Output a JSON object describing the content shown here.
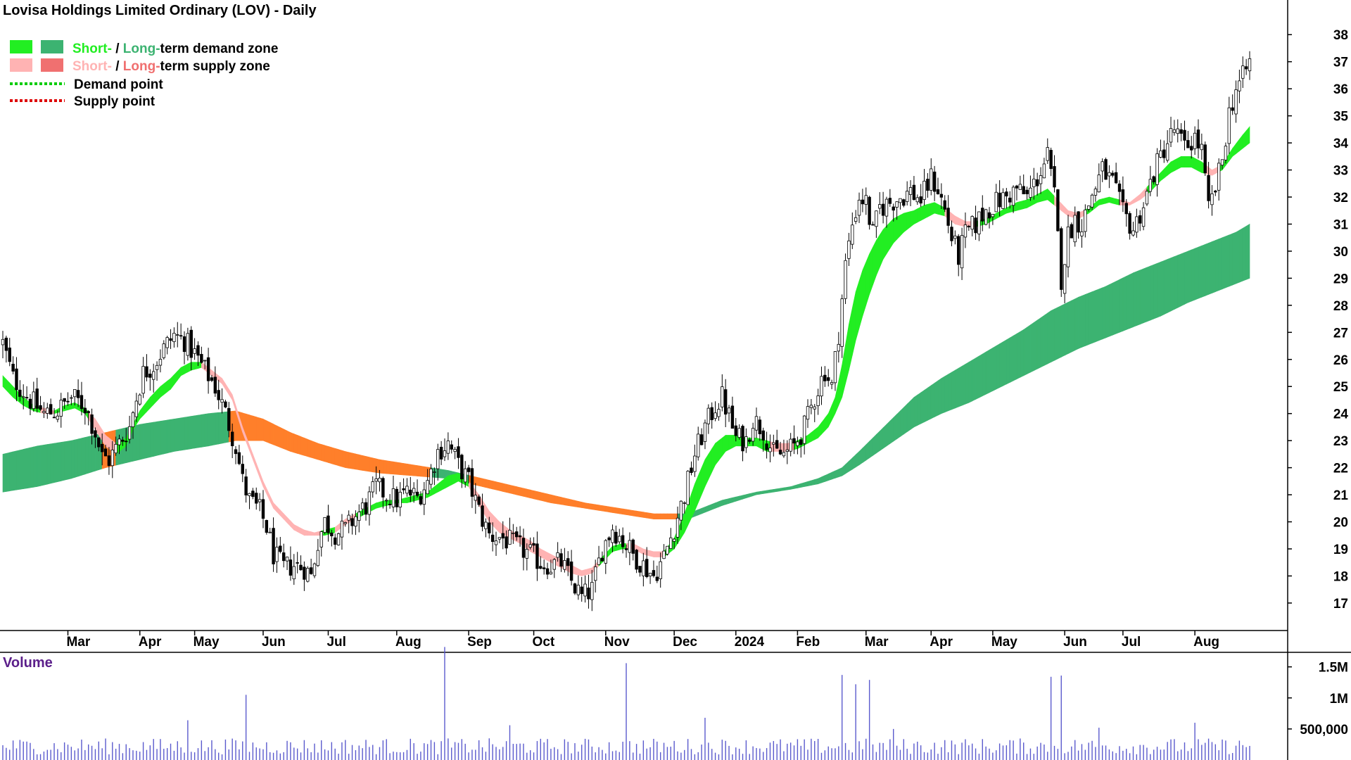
{
  "colors": {
    "short_demand": "#22ee22",
    "long_demand": "#3cb371",
    "short_supply": "#ffb3b3",
    "long_supply": "#f07070",
    "orange_zone": "#ff7f2a",
    "demand_point": "#00cc00",
    "supply_point": "#dd0000",
    "volume_bar": "#5a5acd",
    "volume_label": "#5b1f8a"
  },
  "chart_data": {
    "type": "candlestick",
    "title": "Lovisa Holdings Limited Ordinary (LOV) - Daily",
    "legend": {
      "placement": "top-left",
      "entries": [
        {
          "short": "Short-",
          "sep": " / ",
          "long": "Long-",
          "rest": "term demand zone",
          "kind": "demand"
        },
        {
          "short": "Short-",
          "sep": " / ",
          "long": "Long-",
          "rest": "term supply zone",
          "kind": "supply"
        },
        {
          "label": "Demand point",
          "kind": "demand_point"
        },
        {
          "label": "Supply point",
          "kind": "supply_point"
        }
      ]
    },
    "price_axis": {
      "min": 16.4,
      "max": 38.5,
      "ticks": [
        17,
        18,
        19,
        20,
        21,
        22,
        23,
        24,
        25,
        26,
        27,
        28,
        29,
        30,
        31,
        32,
        33,
        34,
        35,
        36,
        37,
        38
      ],
      "side": "right"
    },
    "time_axis": {
      "start_index": 0,
      "end_index": 360,
      "months": [
        {
          "label": "Mar",
          "index": 19
        },
        {
          "label": "Apr",
          "index": 40
        },
        {
          "label": "May",
          "index": 56
        },
        {
          "label": "Jun",
          "index": 76
        },
        {
          "label": "Jul",
          "index": 95
        },
        {
          "label": "Aug",
          "index": 115
        },
        {
          "label": "Sep",
          "index": 136
        },
        {
          "label": "Oct",
          "index": 155
        },
        {
          "label": "Nov",
          "index": 176
        },
        {
          "label": "Dec",
          "index": 196
        },
        {
          "label": "2024",
          "index": 214
        },
        {
          "label": "Feb",
          "index": 232
        },
        {
          "label": "Mar",
          "index": 252
        },
        {
          "label": "Apr",
          "index": 271
        },
        {
          "label": "May",
          "index": 289
        },
        {
          "label": "Jun",
          "index": 310
        },
        {
          "label": "Jul",
          "index": 327
        },
        {
          "label": "Aug",
          "index": 348
        }
      ]
    },
    "price_path": [
      [
        0,
        26.6
      ],
      [
        3,
        25.3
      ],
      [
        8,
        24.5
      ],
      [
        12,
        24.0
      ],
      [
        16,
        24.1
      ],
      [
        20,
        24.6
      ],
      [
        24,
        24.3
      ],
      [
        27,
        23.3
      ],
      [
        29,
        22.4
      ],
      [
        31,
        22.3
      ],
      [
        34,
        22.9
      ],
      [
        37,
        23.5
      ],
      [
        39,
        24.6
      ],
      [
        41,
        25.5
      ],
      [
        44,
        25.8
      ],
      [
        47,
        26.4
      ],
      [
        50,
        26.9
      ],
      [
        53,
        26.7
      ],
      [
        56,
        26.2
      ],
      [
        59,
        25.6
      ],
      [
        62,
        25.0
      ],
      [
        65,
        24.0
      ],
      [
        68,
        22.8
      ],
      [
        70,
        21.5
      ],
      [
        72,
        20.8
      ],
      [
        75,
        20.4
      ],
      [
        77,
        19.8
      ],
      [
        79,
        18.8
      ],
      [
        82,
        18.3
      ],
      [
        85,
        18.4
      ],
      [
        88,
        18.3
      ],
      [
        90,
        18.0
      ],
      [
        92,
        19.3
      ],
      [
        94,
        20.0
      ],
      [
        97,
        19.6
      ],
      [
        100,
        19.7
      ],
      [
        103,
        20.2
      ],
      [
        106,
        20.6
      ],
      [
        109,
        21.3
      ],
      [
        112,
        21.0
      ],
      [
        115,
        20.8
      ],
      [
        118,
        21.1
      ],
      [
        121,
        20.9
      ],
      [
        124,
        21.5
      ],
      [
        127,
        22.6
      ],
      [
        130,
        22.9
      ],
      [
        133,
        22.1
      ],
      [
        136,
        21.5
      ],
      [
        139,
        20.4
      ],
      [
        142,
        19.5
      ],
      [
        146,
        19.4
      ],
      [
        150,
        19.1
      ],
      [
        154,
        18.8
      ],
      [
        157,
        18.5
      ],
      [
        160,
        18.4
      ],
      [
        163,
        18.5
      ],
      [
        166,
        17.8
      ],
      [
        169,
        17.2
      ],
      [
        172,
        17.5
      ],
      [
        175,
        19.0
      ],
      [
        178,
        19.8
      ],
      [
        181,
        19.3
      ],
      [
        184,
        18.8
      ],
      [
        187,
        18.4
      ],
      [
        190,
        18.0
      ],
      [
        193,
        18.7
      ],
      [
        196,
        19.8
      ],
      [
        199,
        21.0
      ],
      [
        202,
        22.5
      ],
      [
        205,
        23.5
      ],
      [
        208,
        24.3
      ],
      [
        210,
        24.6
      ],
      [
        212,
        23.9
      ],
      [
        214,
        23.1
      ],
      [
        217,
        23.0
      ],
      [
        219,
        23.8
      ],
      [
        222,
        23.4
      ],
      [
        225,
        22.5
      ],
      [
        228,
        22.5
      ],
      [
        231,
        22.8
      ],
      [
        234,
        23.5
      ],
      [
        237,
        24.6
      ],
      [
        240,
        25.6
      ],
      [
        242,
        25.0
      ],
      [
        244,
        27.0
      ],
      [
        246,
        29.5
      ],
      [
        248,
        31.0
      ],
      [
        250,
        32.0
      ],
      [
        252,
        31.8
      ],
      [
        254,
        30.6
      ],
      [
        256,
        31.6
      ],
      [
        259,
        31.8
      ],
      [
        262,
        32.0
      ],
      [
        265,
        32.2
      ],
      [
        268,
        31.9
      ],
      [
        271,
        32.7
      ],
      [
        273,
        32.3
      ],
      [
        275,
        31.5
      ],
      [
        277,
        30.5
      ],
      [
        279,
        29.8
      ],
      [
        281,
        30.6
      ],
      [
        284,
        31.0
      ],
      [
        287,
        31.5
      ],
      [
        290,
        31.8
      ],
      [
        293,
        32.0
      ],
      [
        296,
        32.3
      ],
      [
        299,
        32.0
      ],
      [
        302,
        32.7
      ],
      [
        305,
        33.5
      ],
      [
        307,
        32.0
      ],
      [
        309,
        29.0
      ],
      [
        311,
        30.6
      ],
      [
        313,
        31.2
      ],
      [
        315,
        31.0
      ],
      [
        318,
        32.1
      ],
      [
        321,
        33.0
      ],
      [
        324,
        32.5
      ],
      [
        327,
        31.4
      ],
      [
        330,
        30.8
      ],
      [
        333,
        31.7
      ],
      [
        336,
        32.9
      ],
      [
        339,
        33.8
      ],
      [
        342,
        34.5
      ],
      [
        345,
        33.8
      ],
      [
        348,
        34.2
      ],
      [
        350,
        33.7
      ],
      [
        352,
        31.5
      ],
      [
        354,
        32.3
      ],
      [
        356,
        33.4
      ],
      [
        358,
        35.1
      ],
      [
        360,
        36.0
      ],
      [
        362,
        36.4
      ],
      [
        364,
        37.0
      ]
    ],
    "short_demand_band": [
      [
        0,
        25.4,
        25.0
      ],
      [
        3,
        25.0,
        24.6
      ],
      [
        6,
        24.6,
        24.3
      ],
      [
        9,
        24.3,
        24.1
      ],
      [
        12,
        24.2,
        24.0
      ],
      [
        15,
        24.1,
        24.0
      ],
      [
        18,
        24.3,
        24.1
      ],
      [
        21,
        24.4,
        24.2
      ],
      [
        24,
        24.2,
        24.0
      ],
      [
        27,
        23.8,
        23.4
      ],
      [
        30,
        23.2,
        22.8
      ],
      [
        33,
        22.9,
        22.5
      ],
      [
        36,
        23.1,
        22.8
      ],
      [
        38,
        23.6,
        23.4
      ],
      [
        40,
        24.1,
        23.8
      ],
      [
        43,
        24.6,
        24.2
      ],
      [
        46,
        25.0,
        24.6
      ],
      [
        49,
        25.3,
        24.9
      ],
      [
        52,
        25.7,
        25.4
      ],
      [
        55,
        25.9,
        25.6
      ],
      [
        58,
        25.9,
        25.7
      ],
      [
        61,
        25.6,
        25.4
      ],
      [
        64,
        25.3,
        25.1
      ],
      [
        67,
        24.7,
        24.5
      ],
      [
        70,
        23.5,
        23.3
      ],
      [
        73,
        22.5,
        22.3
      ],
      [
        76,
        21.5,
        21.3
      ],
      [
        79,
        20.7,
        20.5
      ],
      [
        82,
        20.3,
        20.1
      ],
      [
        85,
        19.9,
        19.7
      ],
      [
        88,
        19.7,
        19.5
      ],
      [
        91,
        19.6,
        19.5
      ],
      [
        94,
        19.7,
        19.5
      ],
      [
        97,
        19.8,
        19.6
      ],
      [
        100,
        20.1,
        19.9
      ],
      [
        103,
        20.3,
        20.1
      ],
      [
        106,
        20.5,
        20.3
      ],
      [
        109,
        20.7,
        20.5
      ],
      [
        112,
        20.8,
        20.6
      ],
      [
        115,
        20.8,
        20.7
      ],
      [
        118,
        20.9,
        20.7
      ],
      [
        121,
        21.0,
        20.8
      ],
      [
        124,
        21.1,
        20.9
      ],
      [
        127,
        21.4,
        21.1
      ],
      [
        130,
        21.7,
        21.3
      ],
      [
        133,
        21.8,
        21.5
      ],
      [
        136,
        21.5,
        21.3
      ],
      [
        139,
        21.0,
        20.6
      ],
      [
        142,
        20.4,
        20.0
      ],
      [
        145,
        20.0,
        19.6
      ],
      [
        148,
        19.7,
        19.4
      ],
      [
        151,
        19.5,
        19.2
      ],
      [
        154,
        19.3,
        18.9
      ],
      [
        157,
        19.0,
        18.7
      ],
      [
        160,
        18.8,
        18.5
      ],
      [
        163,
        18.6,
        18.3
      ],
      [
        166,
        18.4,
        18.1
      ],
      [
        169,
        18.2,
        18.0
      ],
      [
        172,
        18.3,
        18.1
      ],
      [
        175,
        18.7,
        18.5
      ],
      [
        178,
        19.1,
        18.9
      ],
      [
        181,
        19.2,
        19.0
      ],
      [
        184,
        19.2,
        19.0
      ],
      [
        187,
        19.0,
        18.8
      ],
      [
        190,
        18.9,
        18.7
      ],
      [
        193,
        18.9,
        18.7
      ],
      [
        196,
        19.4,
        19.0
      ],
      [
        199,
        20.3,
        19.6
      ],
      [
        202,
        21.4,
        20.4
      ],
      [
        205,
        22.3,
        21.3
      ],
      [
        208,
        22.9,
        22.1
      ],
      [
        211,
        23.2,
        22.6
      ],
      [
        214,
        23.2,
        22.8
      ],
      [
        217,
        23.1,
        22.8
      ],
      [
        220,
        23.1,
        22.8
      ],
      [
        223,
        23.0,
        22.6
      ],
      [
        226,
        22.9,
        22.6
      ],
      [
        229,
        22.9,
        22.6
      ],
      [
        232,
        23.0,
        22.7
      ],
      [
        235,
        23.2,
        22.9
      ],
      [
        238,
        23.5,
        23.1
      ],
      [
        241,
        24.0,
        23.5
      ],
      [
        243,
        24.6,
        24.0
      ],
      [
        245,
        25.8,
        24.6
      ],
      [
        247,
        27.3,
        25.6
      ],
      [
        249,
        28.5,
        26.7
      ],
      [
        251,
        29.3,
        27.6
      ],
      [
        253,
        29.9,
        28.4
      ],
      [
        255,
        30.4,
        29.1
      ],
      [
        257,
        30.8,
        29.7
      ],
      [
        260,
        31.2,
        30.3
      ],
      [
        263,
        31.4,
        30.7
      ],
      [
        266,
        31.5,
        31.0
      ],
      [
        269,
        31.7,
        31.2
      ],
      [
        272,
        31.8,
        31.4
      ],
      [
        275,
        31.6,
        31.3
      ],
      [
        278,
        31.3,
        31.0
      ],
      [
        281,
        31.1,
        30.9
      ],
      [
        284,
        31.1,
        30.9
      ],
      [
        287,
        31.2,
        31.0
      ],
      [
        290,
        31.4,
        31.2
      ],
      [
        293,
        31.6,
        31.4
      ],
      [
        296,
        31.8,
        31.5
      ],
      [
        299,
        31.9,
        31.6
      ],
      [
        302,
        32.1,
        31.8
      ],
      [
        305,
        32.3,
        31.9
      ],
      [
        308,
        31.9,
        31.6
      ],
      [
        311,
        31.5,
        31.3
      ],
      [
        314,
        31.4,
        31.2
      ],
      [
        317,
        31.6,
        31.4
      ],
      [
        320,
        31.9,
        31.7
      ],
      [
        323,
        32.0,
        31.8
      ],
      [
        326,
        31.9,
        31.7
      ],
      [
        329,
        31.8,
        31.7
      ],
      [
        332,
        32.1,
        31.9
      ],
      [
        335,
        32.5,
        32.2
      ],
      [
        338,
        32.9,
        32.6
      ],
      [
        341,
        33.3,
        32.9
      ],
      [
        344,
        33.5,
        33.1
      ],
      [
        347,
        33.5,
        33.1
      ],
      [
        350,
        33.3,
        32.9
      ],
      [
        353,
        33.0,
        32.8
      ],
      [
        356,
        33.2,
        33.0
      ],
      [
        359,
        33.8,
        33.5
      ],
      [
        362,
        34.3,
        33.8
      ],
      [
        364,
        34.6,
        34.0
      ]
    ],
    "long_demand_band": [
      [
        0,
        22.5,
        21.1
      ],
      [
        10,
        22.8,
        21.3
      ],
      [
        20,
        23.0,
        21.6
      ],
      [
        30,
        23.3,
        22.0
      ],
      [
        40,
        23.6,
        22.3
      ],
      [
        50,
        23.8,
        22.6
      ],
      [
        60,
        24.0,
        22.8
      ],
      [
        68,
        24.1,
        23.0
      ],
      [
        76,
        23.8,
        23.0
      ],
      [
        84,
        23.3,
        22.6
      ],
      [
        92,
        22.9,
        22.3
      ],
      [
        100,
        22.6,
        22.0
      ],
      [
        110,
        22.3,
        21.8
      ],
      [
        120,
        22.1,
        21.7
      ],
      [
        130,
        21.9,
        21.6
      ],
      [
        140,
        21.6,
        21.3
      ],
      [
        150,
        21.3,
        21.0
      ],
      [
        160,
        21.0,
        20.7
      ],
      [
        170,
        20.7,
        20.5
      ],
      [
        180,
        20.5,
        20.3
      ],
      [
        190,
        20.3,
        20.1
      ],
      [
        200,
        20.3,
        20.1
      ],
      [
        210,
        20.8,
        20.6
      ],
      [
        220,
        21.1,
        21.0
      ],
      [
        230,
        21.3,
        21.2
      ],
      [
        238,
        21.6,
        21.4
      ],
      [
        245,
        22.0,
        21.7
      ],
      [
        250,
        22.6,
        22.1
      ],
      [
        258,
        23.6,
        22.8
      ],
      [
        266,
        24.6,
        23.5
      ],
      [
        274,
        25.3,
        24.0
      ],
      [
        282,
        25.9,
        24.4
      ],
      [
        290,
        26.5,
        24.9
      ],
      [
        298,
        27.1,
        25.4
      ],
      [
        306,
        27.8,
        25.9
      ],
      [
        314,
        28.3,
        26.4
      ],
      [
        322,
        28.7,
        26.8
      ],
      [
        330,
        29.2,
        27.2
      ],
      [
        338,
        29.6,
        27.6
      ],
      [
        346,
        30.0,
        28.1
      ],
      [
        354,
        30.4,
        28.5
      ],
      [
        360,
        30.7,
        28.8
      ],
      [
        364,
        31.0,
        29.0
      ]
    ],
    "volume_axis": {
      "max": 1700000,
      "ticks": [
        {
          "v": 500000,
          "label": "500,000"
        },
        {
          "v": 1000000,
          "label": "1M"
        },
        {
          "v": 1500000,
          "label": "1.5M"
        }
      ],
      "label": "Volume"
    },
    "volume_spikes": [
      [
        71,
        1050000
      ],
      [
        129,
        1820000
      ],
      [
        182,
        1560000
      ],
      [
        245,
        1370000
      ],
      [
        249,
        1220000
      ],
      [
        253,
        1290000
      ],
      [
        306,
        1340000
      ],
      [
        309,
        1360000
      ],
      [
        54,
        640000
      ],
      [
        148,
        560000
      ],
      [
        205,
        680000
      ],
      [
        260,
        500000
      ],
      [
        320,
        520000
      ],
      [
        348,
        600000
      ]
    ]
  }
}
